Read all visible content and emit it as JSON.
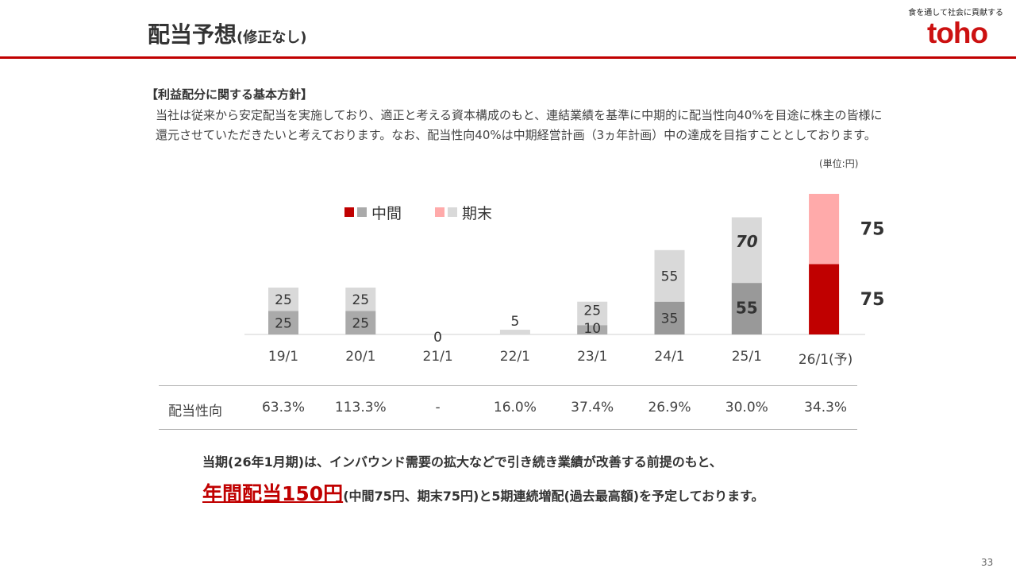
{
  "header": {
    "title": "配当予想",
    "title_sub": "(修正なし)",
    "tagline": "食を通して社会に貢献する",
    "logo": "toho"
  },
  "policy": {
    "heading": "【利益配分に関する基本方針】",
    "body": "当社は従来から安定配当を実施しており、適正と考える資本構成のもと、連結業績を基準に中期的に配当性向40%を目途に株主の皆様に還元させていただきたいと考えております。なお、配当性向40%は中期経営計画（3ヵ年計画）中の達成を目指すこととしております。"
  },
  "unit": "(単位:円)",
  "chart_data": {
    "type": "bar",
    "stacked": true,
    "categories": [
      "19/1",
      "20/1",
      "21/1",
      "22/1",
      "23/1",
      "24/1",
      "25/1",
      "26/1(予)"
    ],
    "series": [
      {
        "name": "中間",
        "values": [
          25,
          25,
          0,
          0,
          10,
          35,
          55,
          75
        ]
      },
      {
        "name": "期末",
        "values": [
          25,
          25,
          0,
          5,
          25,
          55,
          70,
          75
        ]
      }
    ],
    "colors": {
      "interim_light": "#aaaaaa",
      "interim_dark": "#999999",
      "interim_forecast": "#c00000",
      "year_end": "#d9d9d9",
      "year_end_forecast": "#ffaaaa"
    },
    "legend_position": "top",
    "forecast_category": "26/1(予)",
    "zero_label": "0",
    "grid": false
  },
  "payout_ratio": {
    "label": "配当性向",
    "values": [
      "63.3%",
      "113.3%",
      "-",
      "16.0%",
      "37.4%",
      "26.9%",
      "30.0%",
      "34.3%"
    ]
  },
  "summary": {
    "line1": "当期(26年1月期)は、インバウンド需要の拡大などで引き続き業績が改善する前提のもと、",
    "highlight": "年間配当150円",
    "line2_rest": "(中間75円、期末75円)と5期連続増配(過去最高額)を予定しております。"
  },
  "page_number": "33"
}
